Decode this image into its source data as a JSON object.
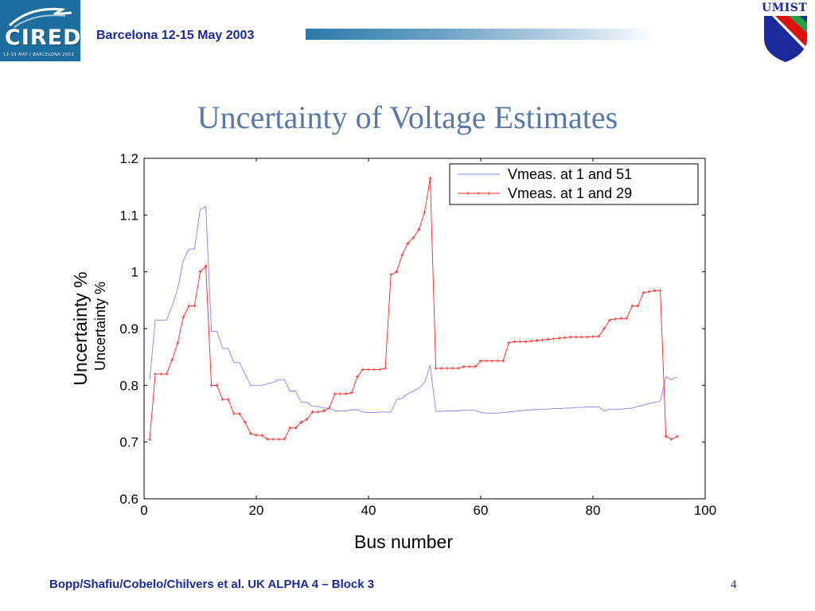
{
  "header": {
    "logo_left_text": "CIRED",
    "logo_left_subtext": "12-15 MAY | BARCELONA 2003",
    "conference": "Barcelona  12-15 May 2003",
    "logo_right_text": "UMIST",
    "logo_right_colors": [
      "#1a2a9a",
      "#e01010",
      "#20a040"
    ]
  },
  "slide_title": "Uncertainty of Voltage Estimates",
  "footer": {
    "authors": "Bopp/Shafiu/Cobelo/Chilvers et al.  UK  ALPHA 4 – Block 3",
    "page": "4"
  },
  "chart_data": {
    "type": "line",
    "title": "",
    "xlabel": "Bus number",
    "ylabel": "Uncertainty %",
    "ylabel_overlay": "Uncertainty %",
    "xlim": [
      0,
      100
    ],
    "ylim": [
      0.6,
      1.2
    ],
    "xticks": [
      "0",
      "20",
      "40",
      "60",
      "80",
      "100"
    ],
    "yticks": [
      "0.6",
      "0.7",
      "0.8",
      "0.9",
      "1",
      "1.1",
      "1.2"
    ],
    "grid": false,
    "legend_position": "top-right",
    "series": [
      {
        "name": "Vmeas. at 1 and 51",
        "color": "#8080ff",
        "marker": "none",
        "x": [
          1,
          2,
          3,
          4,
          5,
          6,
          7,
          8,
          9,
          10,
          11,
          12,
          13,
          14,
          15,
          16,
          17,
          18,
          19,
          20,
          21,
          22,
          23,
          24,
          25,
          26,
          27,
          28,
          29,
          30,
          31,
          32,
          33,
          34,
          35,
          36,
          37,
          38,
          39,
          40,
          41,
          42,
          43,
          44,
          45,
          46,
          47,
          48,
          49,
          50,
          51,
          52,
          53,
          54,
          55,
          56,
          57,
          58,
          59,
          60,
          61,
          62,
          63,
          64,
          65,
          66,
          67,
          68,
          69,
          70,
          71,
          72,
          73,
          74,
          75,
          76,
          77,
          78,
          79,
          80,
          81,
          82,
          83,
          84,
          85,
          86,
          87,
          88,
          89,
          90,
          91,
          92,
          93,
          94,
          95
        ],
        "y": [
          0.81,
          0.915,
          0.915,
          0.915,
          0.94,
          0.97,
          1.02,
          1.04,
          1.04,
          1.11,
          1.115,
          0.895,
          0.895,
          0.865,
          0.865,
          0.84,
          0.84,
          0.82,
          0.8,
          0.8,
          0.8,
          0.803,
          0.805,
          0.81,
          0.81,
          0.79,
          0.79,
          0.77,
          0.77,
          0.763,
          0.763,
          0.76,
          0.76,
          0.755,
          0.755,
          0.755,
          0.757,
          0.757,
          0.753,
          0.752,
          0.752,
          0.753,
          0.753,
          0.753,
          0.775,
          0.777,
          0.785,
          0.79,
          0.795,
          0.805,
          0.835,
          0.754,
          0.754,
          0.755,
          0.755,
          0.755,
          0.756,
          0.756,
          0.756,
          0.752,
          0.751,
          0.751,
          0.751,
          0.752,
          0.753,
          0.754,
          0.755,
          0.756,
          0.757,
          0.757,
          0.758,
          0.758,
          0.759,
          0.759,
          0.76,
          0.76,
          0.761,
          0.761,
          0.762,
          0.762,
          0.762,
          0.755,
          0.758,
          0.758,
          0.758,
          0.759,
          0.76,
          0.763,
          0.765,
          0.768,
          0.77,
          0.772,
          0.815,
          0.81,
          0.815
        ]
      },
      {
        "name": "Vmeas. at 1 and 29",
        "color": "#ff2020",
        "marker": "plus",
        "x": [
          1,
          2,
          3,
          4,
          5,
          6,
          7,
          8,
          9,
          10,
          11,
          12,
          13,
          14,
          15,
          16,
          17,
          18,
          19,
          20,
          21,
          22,
          23,
          24,
          25,
          26,
          27,
          28,
          29,
          30,
          31,
          32,
          33,
          34,
          35,
          36,
          37,
          38,
          39,
          40,
          41,
          42,
          43,
          44,
          45,
          46,
          47,
          48,
          49,
          50,
          51,
          52,
          53,
          54,
          55,
          56,
          57,
          58,
          59,
          60,
          61,
          62,
          63,
          64,
          65,
          66,
          67,
          68,
          69,
          70,
          71,
          72,
          73,
          74,
          75,
          76,
          77,
          78,
          79,
          80,
          81,
          82,
          83,
          84,
          85,
          86,
          87,
          88,
          89,
          90,
          91,
          92,
          93,
          94,
          95
        ],
        "y": [
          0.705,
          0.82,
          0.82,
          0.82,
          0.845,
          0.875,
          0.92,
          0.94,
          0.94,
          1.0,
          1.01,
          0.8,
          0.8,
          0.775,
          0.775,
          0.75,
          0.75,
          0.735,
          0.715,
          0.712,
          0.712,
          0.705,
          0.705,
          0.705,
          0.705,
          0.725,
          0.725,
          0.735,
          0.74,
          0.753,
          0.753,
          0.755,
          0.76,
          0.785,
          0.785,
          0.785,
          0.787,
          0.815,
          0.828,
          0.828,
          0.828,
          0.828,
          0.83,
          0.995,
          1.0,
          1.03,
          1.05,
          1.06,
          1.075,
          1.105,
          1.165,
          0.83,
          0.83,
          0.83,
          0.83,
          0.83,
          0.833,
          0.833,
          0.833,
          0.843,
          0.843,
          0.843,
          0.843,
          0.843,
          0.875,
          0.877,
          0.877,
          0.877,
          0.878,
          0.879,
          0.88,
          0.881,
          0.882,
          0.883,
          0.884,
          0.885,
          0.885,
          0.885,
          0.885,
          0.886,
          0.886,
          0.9,
          0.915,
          0.917,
          0.918,
          0.918,
          0.94,
          0.94,
          0.963,
          0.965,
          0.967,
          0.967,
          0.71,
          0.705,
          0.71
        ]
      }
    ]
  }
}
